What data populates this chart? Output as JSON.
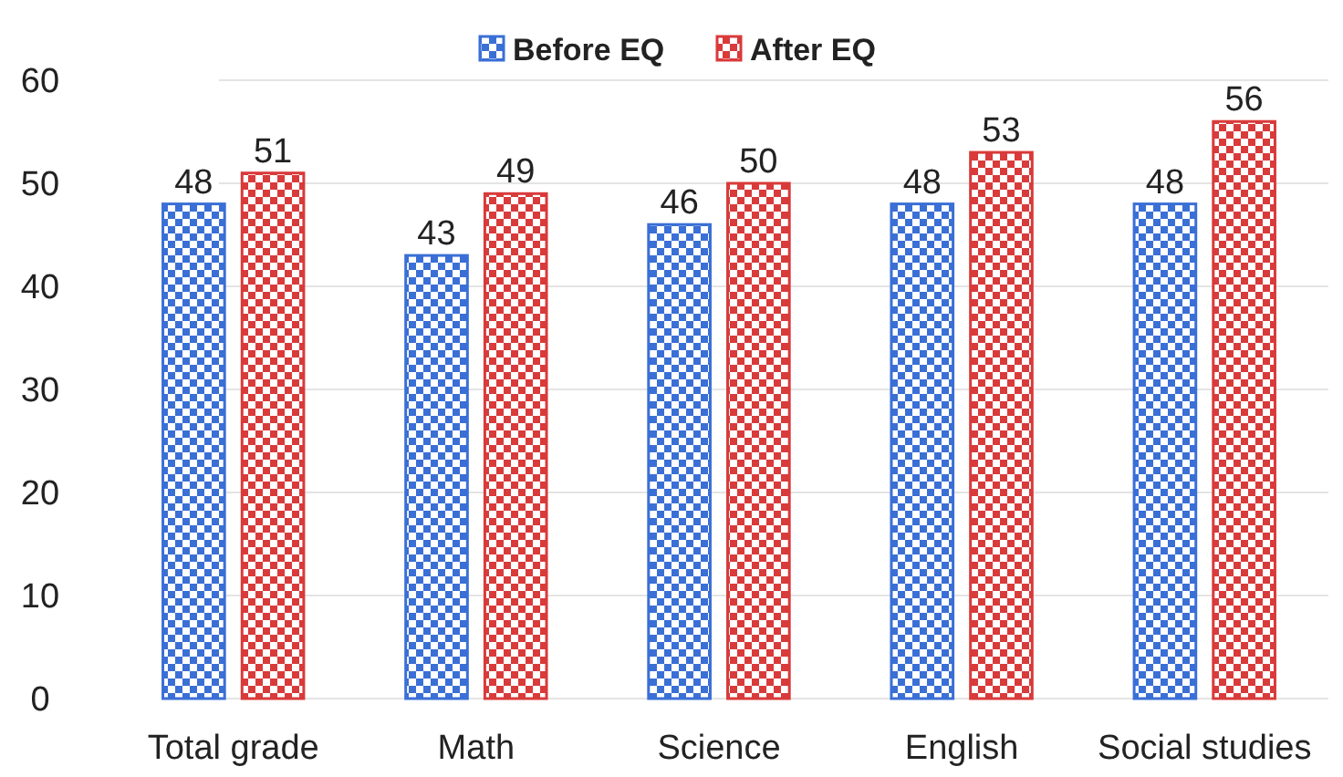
{
  "chart_data": {
    "type": "bar",
    "categories": [
      "Total grade",
      "Math",
      "Science",
      "English",
      "Social studies"
    ],
    "series": [
      {
        "name": "Before EQ",
        "color": "#3a6fd6",
        "values": [
          48,
          43,
          46,
          48,
          48
        ]
      },
      {
        "name": "After EQ",
        "color": "#d93a3a",
        "values": [
          51,
          49,
          50,
          53,
          56
        ]
      }
    ],
    "ylim": [
      0,
      60
    ],
    "yticks": [
      0,
      10,
      20,
      30,
      40,
      50,
      60
    ],
    "grid": "y",
    "legend": "top",
    "data_labels": true
  }
}
